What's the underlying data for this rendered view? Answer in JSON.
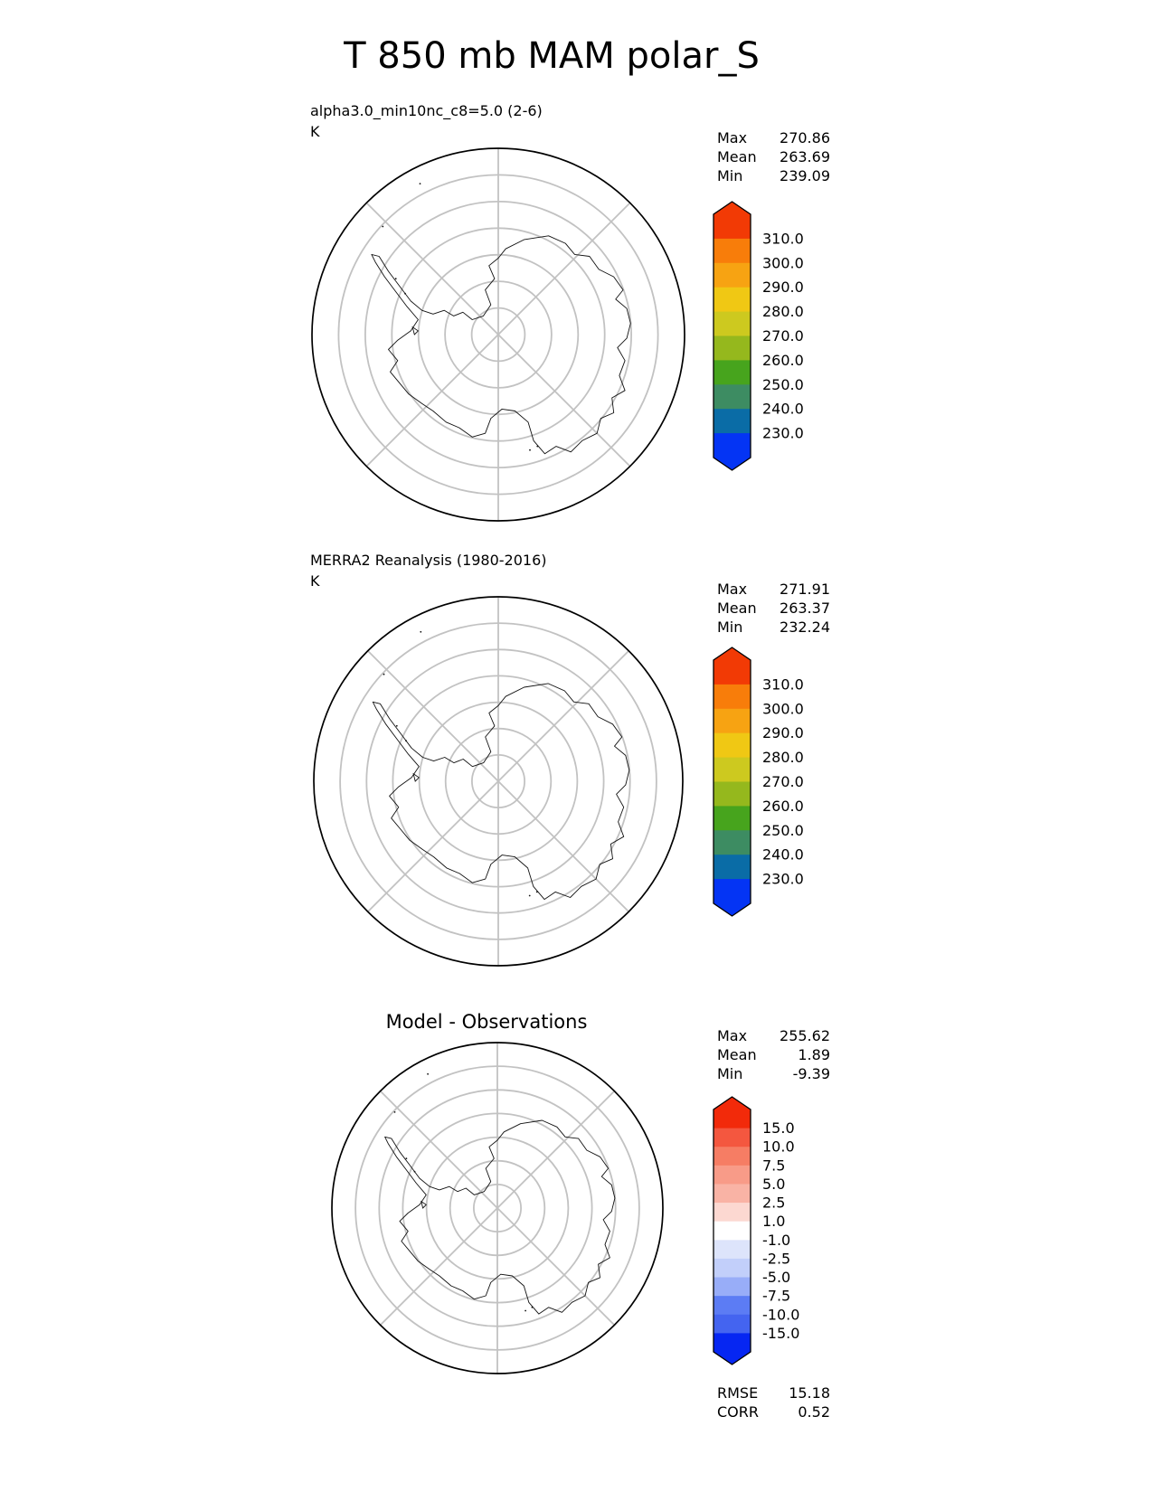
{
  "figure_title": "T 850 mb MAM polar_S",
  "panels": [
    {
      "label_line1": "alpha3.0_min10nc_c8=5.0 (2-6)",
      "units": "K",
      "stats": [
        {
          "label": "Max",
          "value": "270.86"
        },
        {
          "label": "Mean",
          "value": "263.69"
        },
        {
          "label": "Min",
          "value": "239.09"
        }
      ],
      "colorbar": {
        "tick_labels": [
          "310.0",
          "300.0",
          "290.0",
          "280.0",
          "270.0",
          "260.0",
          "250.0",
          "240.0",
          "230.0"
        ],
        "segment_colors": [
          "#f23a05",
          "#f87d0a",
          "#f7a312",
          "#f0c814",
          "#cdc91f",
          "#95b81d",
          "#47a41d",
          "#3d8c62",
          "#0a6ca6",
          "#0434f4"
        ]
      }
    },
    {
      "label_line1": "MERRA2 Reanalysis (1980-2016)",
      "units": "K",
      "stats": [
        {
          "label": "Max",
          "value": "271.91"
        },
        {
          "label": "Mean",
          "value": "263.37"
        },
        {
          "label": "Min",
          "value": "232.24"
        }
      ],
      "colorbar": {
        "tick_labels": [
          "310.0",
          "300.0",
          "290.0",
          "280.0",
          "270.0",
          "260.0",
          "250.0",
          "240.0",
          "230.0"
        ],
        "segment_colors": [
          "#f23a05",
          "#f87d0a",
          "#f7a312",
          "#f0c814",
          "#cdc91f",
          "#95b81d",
          "#47a41d",
          "#3d8c62",
          "#0a6ca6",
          "#0434f4"
        ]
      }
    },
    {
      "title": "Model - Observations",
      "stats": [
        {
          "label": "Max",
          "value": "255.62"
        },
        {
          "label": "Mean",
          "value": "1.89"
        },
        {
          "label": "Min",
          "value": "-9.39"
        }
      ],
      "colorbar": {
        "tick_labels": [
          "15.0",
          "10.0",
          "7.5",
          "5.0",
          "2.5",
          "1.0",
          "-1.0",
          "-2.5",
          "-5.0",
          "-7.5",
          "-10.0",
          "-15.0"
        ],
        "segment_colors": [
          "#f22a0a",
          "#f4573f",
          "#f67d64",
          "#f89b88",
          "#f9b3a5",
          "#fcd8d1",
          "#ffffff",
          "#dde4fb",
          "#c2cffa",
          "#98adf8",
          "#5c7cf4",
          "#4464f0",
          "#0626f2"
        ]
      },
      "metrics": [
        {
          "label": "RMSE",
          "value": "15.18"
        },
        {
          "label": "CORR",
          "value": "0.52"
        }
      ]
    }
  ],
  "colors": {
    "gridline_gray": "#c2c2c2",
    "coastline": "#111111",
    "map_boundary": "#000000"
  },
  "chart_data": [
    {
      "type": "map",
      "projection": "south polar stereographic",
      "region": "Antarctica",
      "title": "alpha3.0_min10nc_c8=5.0 (2-6)",
      "variable": "T 850 mb MAM",
      "units": "K",
      "max": 270.86,
      "mean": 263.69,
      "min": 239.09,
      "contour_levels": [
        230.0,
        240.0,
        250.0,
        260.0,
        270.0,
        280.0,
        290.0,
        300.0,
        310.0
      ]
    },
    {
      "type": "map",
      "projection": "south polar stereographic",
      "region": "Antarctica",
      "title": "MERRA2 Reanalysis (1980-2016)",
      "variable": "T 850 mb MAM",
      "units": "K",
      "max": 271.91,
      "mean": 263.37,
      "min": 232.24,
      "contour_levels": [
        230.0,
        240.0,
        250.0,
        260.0,
        270.0,
        280.0,
        290.0,
        300.0,
        310.0
      ]
    },
    {
      "type": "map",
      "projection": "south polar stereographic",
      "region": "Antarctica",
      "title": "Model - Observations",
      "variable": "T 850 mb MAM difference",
      "units": "K",
      "max": 255.62,
      "mean": 1.89,
      "min": -9.39,
      "contour_levels": [
        -15.0,
        -10.0,
        -7.5,
        -5.0,
        -2.5,
        -1.0,
        1.0,
        2.5,
        5.0,
        7.5,
        10.0,
        15.0
      ],
      "rmse": 15.18,
      "corr": 0.52
    }
  ]
}
